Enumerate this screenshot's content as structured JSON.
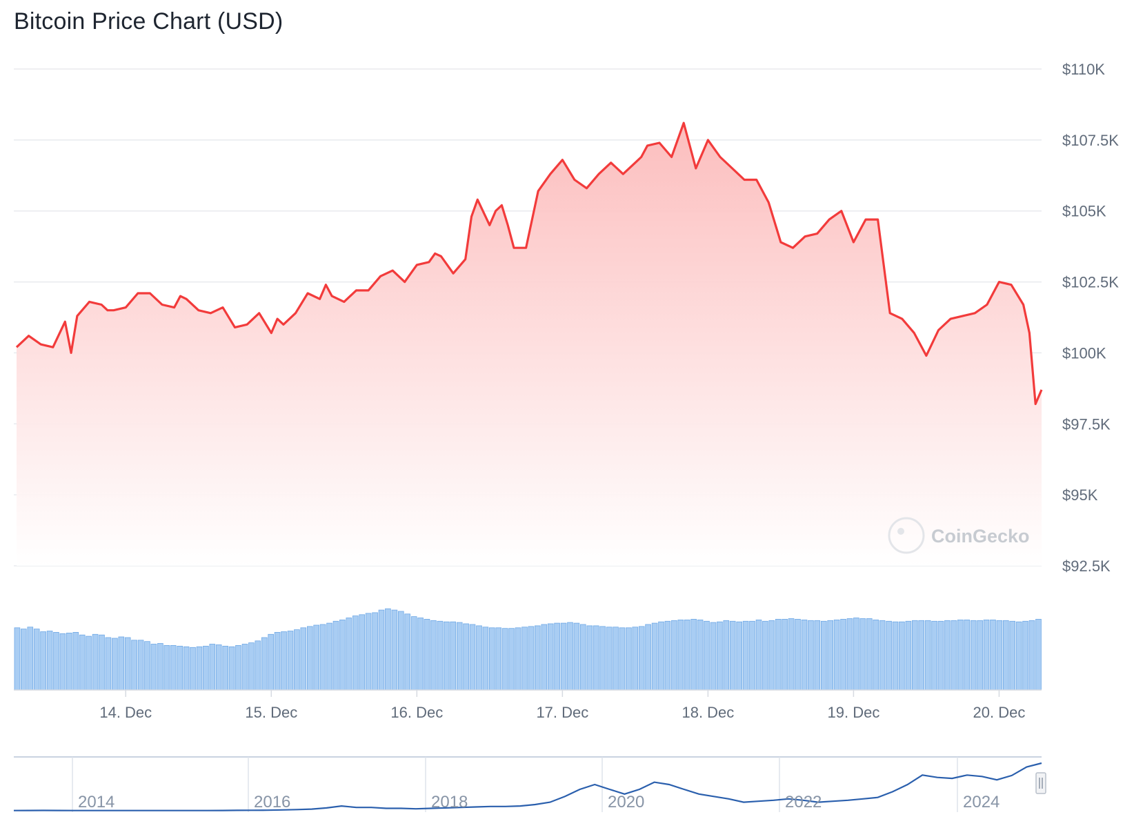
{
  "title": "Bitcoin Price Chart (USD)",
  "watermark": "CoinGecko",
  "colors": {
    "line": "#f23b3b",
    "fill_top": "#fcc5c5",
    "volume": "#a9cdf3",
    "volume_stroke": "#6ea8e6",
    "navigator": "#2a5fad",
    "grid": "#e8eaee"
  },
  "chart_data": {
    "type": "line",
    "title": "Bitcoin Price Chart (USD)",
    "xlabel": "",
    "ylabel": "",
    "y_ticks": [
      "$92.5K",
      "$95K",
      "$97.5K",
      "$100K",
      "$102.5K",
      "$105K",
      "$107.5K",
      "$110K"
    ],
    "ylim": [
      92500,
      110000
    ],
    "x_ticks": [
      "14. Dec",
      "15. Dec",
      "16. Dec",
      "17. Dec",
      "18. Dec",
      "19. Dec",
      "20. Dec"
    ],
    "x_range": [
      "2024-12-13 06:00",
      "2024-12-20 07:00"
    ],
    "grid": true,
    "series": [
      {
        "type": "line",
        "x": [
          "2024-12-13 06:00",
          "2024-12-13 08:00",
          "2024-12-13 10:00",
          "2024-12-13 12:00",
          "2024-12-13 14:00",
          "2024-12-13 15:00",
          "2024-12-13 16:00",
          "2024-12-13 18:00",
          "2024-12-13 20:00",
          "2024-12-13 21:00",
          "2024-12-13 22:00",
          "2024-12-14 00:00",
          "2024-12-14 02:00",
          "2024-12-14 04:00",
          "2024-12-14 06:00",
          "2024-12-14 08:00",
          "2024-12-14 09:00",
          "2024-12-14 10:00",
          "2024-12-14 12:00",
          "2024-12-14 14:00",
          "2024-12-14 16:00",
          "2024-12-14 18:00",
          "2024-12-14 20:00",
          "2024-12-14 22:00",
          "2024-12-15 00:00",
          "2024-12-15 01:00",
          "2024-12-15 02:00",
          "2024-12-15 04:00",
          "2024-12-15 06:00",
          "2024-12-15 08:00",
          "2024-12-15 09:00",
          "2024-12-15 10:00",
          "2024-12-15 12:00",
          "2024-12-15 14:00",
          "2024-12-15 16:00",
          "2024-12-15 18:00",
          "2024-12-15 20:00",
          "2024-12-15 22:00",
          "2024-12-16 00:00",
          "2024-12-16 02:00",
          "2024-12-16 03:00",
          "2024-12-16 04:00",
          "2024-12-16 06:00",
          "2024-12-16 08:00",
          "2024-12-16 09:00",
          "2024-12-16 10:00",
          "2024-12-16 12:00",
          "2024-12-16 13:00",
          "2024-12-16 14:00",
          "2024-12-16 15:00",
          "2024-12-16 16:00",
          "2024-12-16 18:00",
          "2024-12-16 20:00",
          "2024-12-16 22:00",
          "2024-12-17 00:00",
          "2024-12-17 02:00",
          "2024-12-17 04:00",
          "2024-12-17 06:00",
          "2024-12-17 08:00",
          "2024-12-17 10:00",
          "2024-12-17 12:00",
          "2024-12-17 13:00",
          "2024-12-17 14:00",
          "2024-12-17 16:00",
          "2024-12-17 18:00",
          "2024-12-17 20:00",
          "2024-12-17 22:00",
          "2024-12-18 00:00",
          "2024-12-18 02:00",
          "2024-12-18 04:00",
          "2024-12-18 06:00",
          "2024-12-18 08:00",
          "2024-12-18 10:00",
          "2024-12-18 12:00",
          "2024-12-18 14:00",
          "2024-12-18 16:00",
          "2024-12-18 18:00",
          "2024-12-18 20:00",
          "2024-12-18 22:00",
          "2024-12-19 00:00",
          "2024-12-19 02:00",
          "2024-12-19 04:00",
          "2024-12-19 06:00",
          "2024-12-19 08:00",
          "2024-12-19 10:00",
          "2024-12-19 12:00",
          "2024-12-19 14:00",
          "2024-12-19 16:00",
          "2024-12-19 18:00",
          "2024-12-19 20:00",
          "2024-12-19 22:00",
          "2024-12-20 00:00",
          "2024-12-20 02:00",
          "2024-12-20 04:00",
          "2024-12-20 05:00",
          "2024-12-20 06:00",
          "2024-12-20 07:00"
        ],
        "values": [
          100200,
          100600,
          100300,
          100200,
          101100,
          100000,
          101300,
          101800,
          101700,
          101500,
          101500,
          101600,
          102100,
          102100,
          101700,
          101600,
          102000,
          101900,
          101500,
          101400,
          101600,
          100900,
          101000,
          101400,
          100700,
          101200,
          101000,
          101400,
          102100,
          101900,
          102400,
          102000,
          101800,
          102200,
          102200,
          102700,
          102900,
          102500,
          103100,
          103200,
          103500,
          103400,
          102800,
          103300,
          104800,
          105400,
          104500,
          105000,
          105200,
          104500,
          103700,
          103700,
          105700,
          106300,
          106800,
          106100,
          105800,
          106300,
          106700,
          106300,
          106700,
          106900,
          107300,
          107400,
          106900,
          108100,
          106500,
          107500,
          106900,
          106500,
          106100,
          106100,
          105300,
          103900,
          103700,
          104100,
          104200,
          104700,
          105000,
          103900,
          104700,
          104700,
          101400,
          101200,
          100700,
          99900,
          100800,
          101200,
          101300,
          101400,
          101700,
          102500,
          102400,
          101700,
          100700,
          98200,
          98700
        ]
      },
      {
        "type": "bar",
        "name": "volume",
        "note_units": "relative",
        "values": [
          0.95,
          0.93,
          0.96,
          0.93,
          0.89,
          0.9,
          0.88,
          0.86,
          0.87,
          0.88,
          0.84,
          0.82,
          0.85,
          0.84,
          0.8,
          0.79,
          0.81,
          0.8,
          0.76,
          0.76,
          0.74,
          0.7,
          0.71,
          0.68,
          0.68,
          0.67,
          0.66,
          0.65,
          0.66,
          0.67,
          0.7,
          0.69,
          0.67,
          0.66,
          0.68,
          0.7,
          0.72,
          0.75,
          0.8,
          0.85,
          0.88,
          0.89,
          0.9,
          0.92,
          0.95,
          0.97,
          0.99,
          1.0,
          1.02,
          1.05,
          1.07,
          1.1,
          1.13,
          1.15,
          1.17,
          1.18,
          1.22,
          1.24,
          1.22,
          1.2,
          1.16,
          1.12,
          1.1,
          1.08,
          1.06,
          1.05,
          1.04,
          1.04,
          1.03,
          1.01,
          1.0,
          0.98,
          0.96,
          0.95,
          0.95,
          0.94,
          0.94,
          0.95,
          0.96,
          0.97,
          0.98,
          1.0,
          1.01,
          1.02,
          1.02,
          1.03,
          1.02,
          1.0,
          0.98,
          0.98,
          0.97,
          0.96,
          0.96,
          0.95,
          0.95,
          0.96,
          0.97,
          1.0,
          1.02,
          1.04,
          1.05,
          1.06,
          1.07,
          1.07,
          1.08,
          1.07,
          1.05,
          1.03,
          1.04,
          1.06,
          1.05,
          1.04,
          1.05,
          1.05,
          1.07,
          1.05,
          1.06,
          1.08,
          1.08,
          1.09,
          1.08,
          1.07,
          1.06,
          1.06,
          1.05,
          1.06,
          1.07,
          1.08,
          1.09,
          1.1,
          1.09,
          1.09,
          1.07,
          1.06,
          1.05,
          1.04,
          1.04,
          1.05,
          1.06,
          1.06,
          1.06,
          1.05,
          1.05,
          1.06,
          1.06,
          1.07,
          1.07,
          1.06,
          1.06,
          1.07,
          1.07,
          1.06,
          1.06,
          1.05,
          1.04,
          1.05,
          1.06,
          1.08
        ]
      }
    ]
  },
  "navigator": {
    "years": [
      "2014",
      "2016",
      "2018",
      "2020",
      "2022",
      "2024"
    ],
    "values": [
      0.005,
      0.006,
      0.007,
      0.006,
      0.005,
      0.005,
      0.004,
      0.004,
      0.004,
      0.004,
      0.004,
      0.004,
      0.004,
      0.005,
      0.006,
      0.008,
      0.01,
      0.012,
      0.018,
      0.025,
      0.035,
      0.06,
      0.1,
      0.07,
      0.07,
      0.05,
      0.05,
      0.04,
      0.05,
      0.06,
      0.07,
      0.08,
      0.09,
      0.09,
      0.1,
      0.13,
      0.18,
      0.3,
      0.45,
      0.55,
      0.45,
      0.35,
      0.45,
      0.6,
      0.55,
      0.45,
      0.35,
      0.3,
      0.25,
      0.18,
      0.2,
      0.22,
      0.25,
      0.22,
      0.18,
      0.2,
      0.22,
      0.25,
      0.28,
      0.4,
      0.55,
      0.75,
      0.7,
      0.68,
      0.75,
      0.72,
      0.65,
      0.74,
      0.92,
      1.0
    ]
  }
}
